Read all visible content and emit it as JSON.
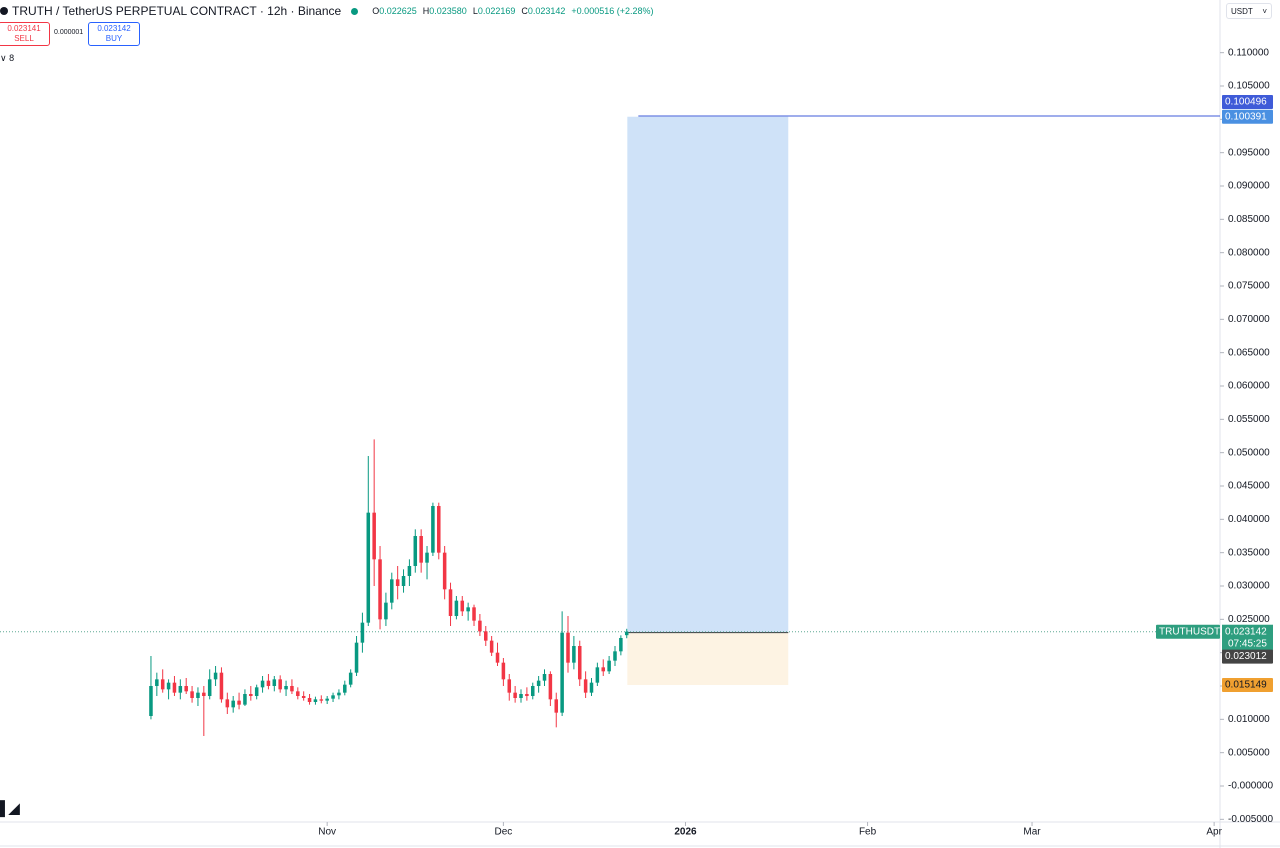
{
  "header": {
    "title": "TRUTH / TetherUS PERPETUAL CONTRACT · 12h · Binance",
    "ohlc": [
      {
        "label": "O",
        "value": "0.022625"
      },
      {
        "label": "H",
        "value": "0.023580"
      },
      {
        "label": "L",
        "value": "0.022169"
      },
      {
        "label": "C",
        "value": "0.023142"
      }
    ],
    "change": "+0.000516 (+2.28%)",
    "currency": "USDT"
  },
  "trade_panel": {
    "sell_price": "0.023141",
    "sell_label": "SELL",
    "spread": "0.000001",
    "buy_price": "0.023142",
    "buy_label": "BUY",
    "indicators": "8"
  },
  "chart_data": {
    "type": "candlestick",
    "up_color": "#089981",
    "down_color": "#f23645",
    "x": [
      1,
      2,
      3,
      4,
      5,
      6,
      7,
      8,
      9,
      10,
      11,
      12,
      13,
      14,
      15,
      16,
      17,
      18,
      19,
      20,
      21,
      22,
      23,
      24,
      25,
      26,
      27,
      28,
      29,
      30,
      31,
      32,
      33,
      34,
      35,
      36,
      37,
      38,
      39,
      40,
      41,
      42,
      43,
      44,
      45,
      46,
      47,
      48,
      49,
      50,
      51,
      52,
      53,
      54,
      55,
      56,
      57,
      58,
      59,
      60,
      61,
      62,
      63,
      64,
      65,
      66,
      67,
      68,
      69,
      70,
      71,
      72,
      73,
      74,
      75,
      76,
      77,
      78,
      79,
      80,
      81,
      82
    ],
    "candles": [
      [
        0.0105,
        0.0195,
        0.01,
        0.015
      ],
      [
        0.015,
        0.017,
        0.0135,
        0.016
      ],
      [
        0.016,
        0.0175,
        0.014,
        0.0145
      ],
      [
        0.0145,
        0.016,
        0.013,
        0.0155
      ],
      [
        0.0155,
        0.0165,
        0.0135,
        0.014
      ],
      [
        0.014,
        0.016,
        0.013,
        0.015
      ],
      [
        0.015,
        0.0162,
        0.0138,
        0.0142
      ],
      [
        0.0142,
        0.015,
        0.0125,
        0.0132
      ],
      [
        0.0132,
        0.0148,
        0.012,
        0.014
      ],
      [
        0.014,
        0.015,
        0.0075,
        0.0135
      ],
      [
        0.0135,
        0.0175,
        0.013,
        0.016
      ],
      [
        0.016,
        0.018,
        0.015,
        0.017
      ],
      [
        0.017,
        0.0178,
        0.0125,
        0.013
      ],
      [
        0.013,
        0.014,
        0.0108,
        0.0118
      ],
      [
        0.0118,
        0.0135,
        0.011,
        0.0128
      ],
      [
        0.0128,
        0.014,
        0.0115,
        0.0122
      ],
      [
        0.0122,
        0.0145,
        0.012,
        0.0138
      ],
      [
        0.0138,
        0.015,
        0.0128,
        0.0135
      ],
      [
        0.0135,
        0.0152,
        0.013,
        0.0148
      ],
      [
        0.0148,
        0.0165,
        0.014,
        0.0158
      ],
      [
        0.0158,
        0.0168,
        0.0145,
        0.015
      ],
      [
        0.015,
        0.0165,
        0.0142,
        0.016
      ],
      [
        0.016,
        0.0166,
        0.014,
        0.0145
      ],
      [
        0.0145,
        0.0158,
        0.0135,
        0.015
      ],
      [
        0.015,
        0.016,
        0.0138,
        0.0142
      ],
      [
        0.0142,
        0.0148,
        0.013,
        0.0135
      ],
      [
        0.0135,
        0.0142,
        0.0128,
        0.0132
      ],
      [
        0.0132,
        0.0138,
        0.0122,
        0.0126
      ],
      [
        0.0126,
        0.0134,
        0.0122,
        0.013
      ],
      [
        0.013,
        0.0136,
        0.0124,
        0.0128
      ],
      [
        0.0128,
        0.0135,
        0.0123,
        0.0131
      ],
      [
        0.0131,
        0.014,
        0.0126,
        0.0136
      ],
      [
        0.0136,
        0.0145,
        0.013,
        0.014
      ],
      [
        0.014,
        0.0158,
        0.0136,
        0.0152
      ],
      [
        0.0152,
        0.0175,
        0.0148,
        0.017
      ],
      [
        0.017,
        0.0225,
        0.0165,
        0.0215
      ],
      [
        0.0215,
        0.026,
        0.02,
        0.0245
      ],
      [
        0.0245,
        0.0495,
        0.024,
        0.041
      ],
      [
        0.041,
        0.052,
        0.03,
        0.034
      ],
      [
        0.034,
        0.036,
        0.0235,
        0.025
      ],
      [
        0.025,
        0.029,
        0.024,
        0.0275
      ],
      [
        0.0275,
        0.032,
        0.0265,
        0.031
      ],
      [
        0.031,
        0.033,
        0.028,
        0.03
      ],
      [
        0.03,
        0.0325,
        0.029,
        0.0315
      ],
      [
        0.0315,
        0.034,
        0.03,
        0.033
      ],
      [
        0.033,
        0.0385,
        0.032,
        0.0375
      ],
      [
        0.0375,
        0.0385,
        0.032,
        0.0335
      ],
      [
        0.0335,
        0.036,
        0.031,
        0.035
      ],
      [
        0.035,
        0.0425,
        0.0345,
        0.042
      ],
      [
        0.042,
        0.0425,
        0.034,
        0.035
      ],
      [
        0.035,
        0.036,
        0.028,
        0.0295
      ],
      [
        0.0295,
        0.0305,
        0.024,
        0.0255
      ],
      [
        0.0255,
        0.0285,
        0.025,
        0.0278
      ],
      [
        0.0278,
        0.0285,
        0.0255,
        0.0262
      ],
      [
        0.0262,
        0.0275,
        0.0248,
        0.0268
      ],
      [
        0.0268,
        0.0272,
        0.024,
        0.0248
      ],
      [
        0.0248,
        0.0258,
        0.0225,
        0.0232
      ],
      [
        0.0232,
        0.024,
        0.021,
        0.0218
      ],
      [
        0.0218,
        0.0225,
        0.0195,
        0.02
      ],
      [
        0.02,
        0.0215,
        0.018,
        0.0185
      ],
      [
        0.0185,
        0.0192,
        0.015,
        0.016
      ],
      [
        0.016,
        0.0168,
        0.0128,
        0.014
      ],
      [
        0.014,
        0.015,
        0.0125,
        0.0132
      ],
      [
        0.0132,
        0.0145,
        0.0125,
        0.0138
      ],
      [
        0.0138,
        0.0148,
        0.0128,
        0.0135
      ],
      [
        0.0135,
        0.0155,
        0.013,
        0.015
      ],
      [
        0.015,
        0.0165,
        0.014,
        0.0158
      ],
      [
        0.0158,
        0.0175,
        0.015,
        0.0168
      ],
      [
        0.0168,
        0.0172,
        0.012,
        0.013
      ],
      [
        0.013,
        0.014,
        0.0088,
        0.011
      ],
      [
        0.011,
        0.0262,
        0.0105,
        0.023
      ],
      [
        0.023,
        0.0255,
        0.017,
        0.0185
      ],
      [
        0.0185,
        0.0225,
        0.0175,
        0.021
      ],
      [
        0.021,
        0.0218,
        0.015,
        0.016
      ],
      [
        0.016,
        0.0172,
        0.0132,
        0.014
      ],
      [
        0.014,
        0.0162,
        0.0135,
        0.0155
      ],
      [
        0.0155,
        0.0185,
        0.015,
        0.0178
      ],
      [
        0.0178,
        0.019,
        0.0165,
        0.0172
      ],
      [
        0.0172,
        0.0195,
        0.0168,
        0.0188
      ],
      [
        0.0188,
        0.021,
        0.018,
        0.0202
      ],
      [
        0.0202,
        0.0226,
        0.0196,
        0.0222
      ],
      [
        0.022625,
        0.02358,
        0.022169,
        0.023142
      ]
    ],
    "xlim": [
      -24.7,
      183
    ],
    "xticks": [
      {
        "value": 31,
        "label": "Nov"
      },
      {
        "value": 61,
        "label": "Dec"
      },
      {
        "value": 92,
        "label": "2026"
      },
      {
        "value": 123,
        "label": "Feb"
      },
      {
        "value": 151,
        "label": "Mar"
      },
      {
        "value": 182,
        "label": "Apr"
      }
    ],
    "ylim": [
      -0.0054,
      0.1179
    ],
    "yticks": [
      {
        "value": -0.005,
        "label": "-0.005000"
      },
      {
        "value": 0,
        "label": "-0.000000"
      },
      {
        "value": 0.005,
        "label": "0.005000"
      },
      {
        "value": 0.01,
        "label": "0.010000"
      },
      {
        "value": 0.015,
        "label": "0.015000"
      },
      {
        "value": 0.02,
        "label": "0.020000"
      },
      {
        "value": 0.025,
        "label": "0.025000"
      },
      {
        "value": 0.03,
        "label": "0.030000"
      },
      {
        "value": 0.035,
        "label": "0.035000"
      },
      {
        "value": 0.04,
        "label": "0.040000"
      },
      {
        "value": 0.045,
        "label": "0.045000"
      },
      {
        "value": 0.05,
        "label": "0.050000"
      },
      {
        "value": 0.055,
        "label": "0.055000"
      },
      {
        "value": 0.06,
        "label": "0.060000"
      },
      {
        "value": 0.065,
        "label": "0.065000"
      },
      {
        "value": 0.07,
        "label": "0.070000"
      },
      {
        "value": 0.075,
        "label": "0.075000"
      },
      {
        "value": 0.08,
        "label": "0.080000"
      },
      {
        "value": 0.085,
        "label": "0.085000"
      },
      {
        "value": 0.09,
        "label": "0.090000"
      },
      {
        "value": 0.095,
        "label": "0.095000"
      },
      {
        "value": 0.1,
        "label": "0.100000"
      },
      {
        "value": 0.105,
        "label": "0.105000"
      },
      {
        "value": 0.11,
        "label": "0.110000"
      }
    ],
    "last_price": 0.023142,
    "symbol_tag": "TRUTHUSDT.P",
    "countdown": "07:45:25",
    "hline": 0.100496,
    "position": {
      "x_start": 82.1,
      "x_end": 109.5,
      "entry": 0.023012,
      "target": 0.100391,
      "stop": 0.015149
    }
  }
}
